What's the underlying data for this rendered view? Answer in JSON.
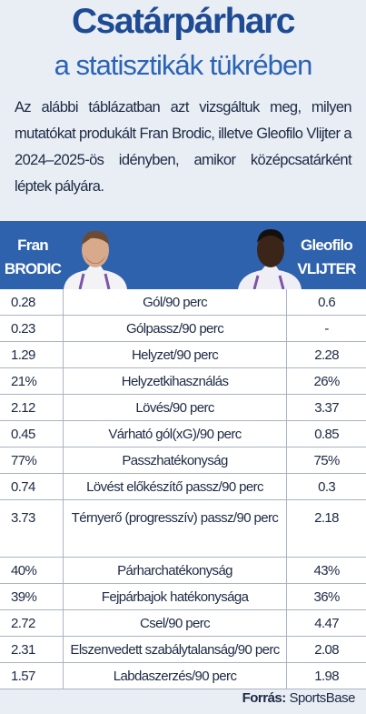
{
  "header": {
    "title": "Csatárpárharc",
    "subtitle": "a statisztikák tükrében",
    "intro": "Az alábbi táblázatban azt vizsgáltuk meg, milyen mutatókat produkált Fran Brodic, illetve Gleofilo Vlijter a 2024–2025-ös idényben, amikor középcsatárként léptek pályára."
  },
  "table": {
    "players": [
      {
        "first": "Fran",
        "last": "BRODIC"
      },
      {
        "first": "Gleofilo",
        "last": "VLIJTER"
      }
    ],
    "rows": [
      [
        "0.28",
        "Gól/90 perc",
        "0.6"
      ],
      [
        "0.23",
        "Gólpassz/90 perc",
        "-"
      ],
      [
        "1.29",
        "Helyzet/90 perc",
        "2.28"
      ],
      [
        "21%",
        "Helyzetkihasználás",
        "26%"
      ],
      [
        "2.12",
        "Lövés/90 perc",
        "3.37"
      ],
      [
        "0.45",
        "Várható gól(xG)/90 perc",
        "0.85"
      ],
      [
        "77%",
        "Passzhatékonyság",
        "75%"
      ],
      [
        "0.74",
        "Lövést előkészítő passz/90 perc",
        "0.3"
      ],
      [
        "3.73",
        "Térnyerő (progresszív) passz/90 perc",
        "2.18"
      ],
      [
        "40%",
        "Párharchatékonyság",
        "43%"
      ],
      [
        "39%",
        "Fejpárbajok hatékonysága",
        "36%"
      ],
      [
        "2.72",
        "Csel/90 perc",
        "4.47"
      ],
      [
        "2.31",
        "Elszenvedett szabálytalanság/90 perc",
        "2.08"
      ],
      [
        "1.57",
        "Labdaszerzés/90 perc",
        "1.98"
      ]
    ]
  },
  "footer": {
    "label": "Forrás:",
    "source": "SportsBase"
  }
}
